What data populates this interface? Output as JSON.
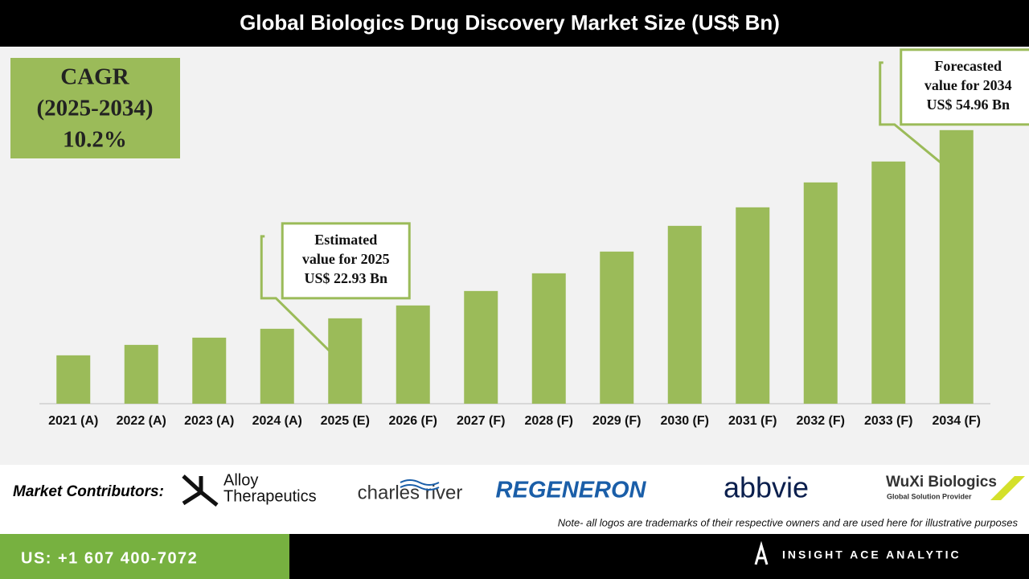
{
  "chart_data": {
    "type": "bar",
    "title": "Global Biologics Drug Discovery Market Size (US$ Bn)",
    "categories": [
      "2021 (A)",
      "2022 (A)",
      "2023 (A)",
      "2024 (A)",
      "2025 (E)",
      "2026 (F)",
      "2027 (F)",
      "2028 (F)",
      "2029 (F)",
      "2030 (F)",
      "2031 (F)",
      "2032 (F)",
      "2033 (F)",
      "2034 (F)"
    ],
    "values": [
      16.63,
      18.41,
      19.64,
      21.15,
      22.93,
      25.12,
      27.58,
      30.59,
      34.29,
      38.67,
      41.82,
      46.06,
      49.62,
      54.96
    ],
    "color": "#9bbb59",
    "ylim": [
      8.4,
      60
    ],
    "cagr": [
      "CAGR",
      "(2025-2034)",
      "10.2%"
    ],
    "annotations": [
      {
        "index": 4,
        "lines": [
          "Estimated",
          "value for 2025",
          "US$ 22.93 Bn"
        ]
      },
      {
        "index": 13,
        "lines": [
          "Forecasted",
          "value for 2034",
          "US$ 54.96 Bn"
        ]
      }
    ]
  },
  "footer": {
    "contributors_label": "Market Contributors:",
    "logos": [
      "Alloy",
      "Therapeutics",
      "charles river",
      "REGENERON",
      "abbvie",
      "WuXi Biologics",
      "Global Solution Provider"
    ],
    "note": "Note- all logos are trademarks of their respective owners and are used here for illustrative purposes",
    "phone": "US: +1 607 400-7072",
    "brand": "INSIGHT ACE ANALYTIC"
  }
}
